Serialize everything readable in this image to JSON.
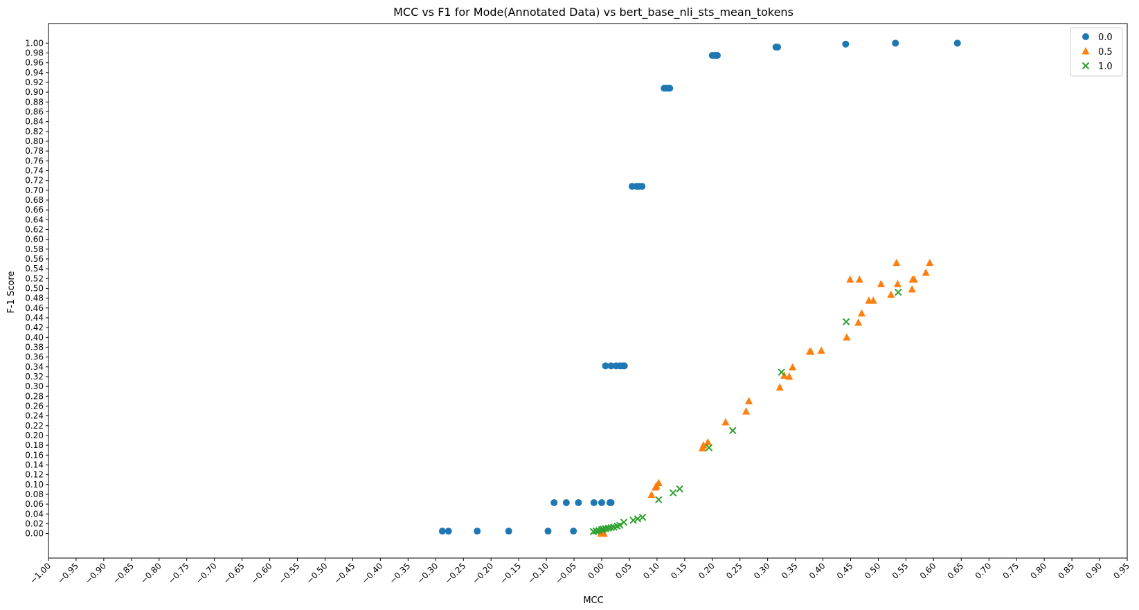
{
  "chart_data": {
    "type": "scatter",
    "title": "MCC vs F1 for Mode(Annotated Data) vs bert_base_nli_sts_mean_tokens",
    "xlabel": "MCC",
    "ylabel": "F-1 Score",
    "xlim": [
      -1.0,
      0.95
    ],
    "ylim": [
      -0.05,
      1.04
    ],
    "grid": false,
    "legend_position": "top-right",
    "x_ticks": [
      "−1.00",
      "−0.95",
      "−0.90",
      "−0.85",
      "−0.80",
      "−0.75",
      "−0.70",
      "−0.65",
      "−0.60",
      "−0.55",
      "−0.50",
      "−0.45",
      "−0.40",
      "−0.35",
      "−0.30",
      "−0.25",
      "−0.20",
      "−0.15",
      "−0.10",
      "−0.05",
      "0.00",
      "0.05",
      "0.10",
      "0.15",
      "0.20",
      "0.25",
      "0.30",
      "0.35",
      "0.40",
      "0.45",
      "0.50",
      "0.55",
      "0.60",
      "0.65",
      "0.70",
      "0.75",
      "0.80",
      "0.85",
      "0.90",
      "0.95"
    ],
    "y_ticks": [
      "0.00",
      "0.02",
      "0.04",
      "0.06",
      "0.08",
      "0.10",
      "0.12",
      "0.14",
      "0.16",
      "0.18",
      "0.20",
      "0.22",
      "0.24",
      "0.26",
      "0.28",
      "0.30",
      "0.32",
      "0.34",
      "0.36",
      "0.38",
      "0.40",
      "0.42",
      "0.44",
      "0.46",
      "0.48",
      "0.50",
      "0.52",
      "0.54",
      "0.56",
      "0.58",
      "0.60",
      "0.62",
      "0.64",
      "0.66",
      "0.68",
      "0.70",
      "0.72",
      "0.74",
      "0.76",
      "0.78",
      "0.80",
      "0.82",
      "0.84",
      "0.86",
      "0.88",
      "0.90",
      "0.92",
      "0.94",
      "0.96",
      "0.98",
      "1.00"
    ],
    "series": [
      {
        "name": "0.0",
        "marker": "circle",
        "color": "#1f77b4",
        "points": [
          [
            -0.288,
            0.005
          ],
          [
            -0.277,
            0.005
          ],
          [
            -0.225,
            0.005
          ],
          [
            -0.168,
            0.005
          ],
          [
            -0.097,
            0.005
          ],
          [
            -0.051,
            0.005
          ],
          [
            -0.086,
            0.063
          ],
          [
            -0.064,
            0.063
          ],
          [
            -0.042,
            0.063
          ],
          [
            -0.014,
            0.063
          ],
          [
            0.0,
            0.063
          ],
          [
            0.015,
            0.063
          ],
          [
            0.017,
            0.063
          ],
          [
            0.007,
            0.342
          ],
          [
            0.017,
            0.342
          ],
          [
            0.026,
            0.342
          ],
          [
            0.033,
            0.342
          ],
          [
            0.038,
            0.342
          ],
          [
            0.041,
            0.342
          ],
          [
            0.055,
            0.708
          ],
          [
            0.063,
            0.708
          ],
          [
            0.067,
            0.708
          ],
          [
            0.073,
            0.708
          ],
          [
            0.113,
            0.908
          ],
          [
            0.118,
            0.908
          ],
          [
            0.123,
            0.908
          ],
          [
            0.2,
            0.975
          ],
          [
            0.205,
            0.975
          ],
          [
            0.209,
            0.975
          ],
          [
            0.315,
            0.992
          ],
          [
            0.318,
            0.992
          ],
          [
            0.441,
            0.998
          ],
          [
            0.531,
            1.0
          ],
          [
            0.643,
            1.0
          ]
        ]
      },
      {
        "name": "0.5",
        "marker": "triangle",
        "color": "#ff7f0e",
        "points": [
          [
            -0.001,
            0.0
          ],
          [
            0.002,
            0.0
          ],
          [
            0.004,
            0.0
          ],
          [
            0.09,
            0.079
          ],
          [
            0.097,
            0.094
          ],
          [
            0.099,
            0.097
          ],
          [
            0.103,
            0.103
          ],
          [
            0.182,
            0.174
          ],
          [
            0.184,
            0.18
          ],
          [
            0.192,
            0.186
          ],
          [
            0.224,
            0.227
          ],
          [
            0.261,
            0.249
          ],
          [
            0.266,
            0.27
          ],
          [
            0.322,
            0.298
          ],
          [
            0.33,
            0.322
          ],
          [
            0.339,
            0.32
          ],
          [
            0.345,
            0.339
          ],
          [
            0.376,
            0.371
          ],
          [
            0.378,
            0.371
          ],
          [
            0.397,
            0.373
          ],
          [
            0.443,
            0.4
          ],
          [
            0.449,
            0.518
          ],
          [
            0.464,
            0.43
          ],
          [
            0.466,
            0.518
          ],
          [
            0.47,
            0.449
          ],
          [
            0.483,
            0.475
          ],
          [
            0.491,
            0.475
          ],
          [
            0.505,
            0.509
          ],
          [
            0.523,
            0.487
          ],
          [
            0.533,
            0.552
          ],
          [
            0.535,
            0.509
          ],
          [
            0.561,
            0.498
          ],
          [
            0.562,
            0.518
          ],
          [
            0.565,
            0.518
          ],
          [
            0.586,
            0.532
          ],
          [
            0.593,
            0.552
          ]
        ]
      },
      {
        "name": "1.0",
        "marker": "x",
        "color": "#2ca02c",
        "points": [
          [
            -0.015,
            0.004
          ],
          [
            -0.01,
            0.005
          ],
          [
            -0.005,
            0.006
          ],
          [
            0.0,
            0.008
          ],
          [
            0.003,
            0.009
          ],
          [
            0.007,
            0.01
          ],
          [
            0.012,
            0.011
          ],
          [
            0.017,
            0.012
          ],
          [
            0.022,
            0.013
          ],
          [
            0.028,
            0.015
          ],
          [
            0.033,
            0.017
          ],
          [
            0.04,
            0.023
          ],
          [
            0.057,
            0.027
          ],
          [
            0.065,
            0.03
          ],
          [
            0.074,
            0.033
          ],
          [
            0.103,
            0.069
          ],
          [
            0.129,
            0.083
          ],
          [
            0.141,
            0.091
          ],
          [
            0.194,
            0.175
          ],
          [
            0.237,
            0.21
          ],
          [
            0.325,
            0.329
          ],
          [
            0.442,
            0.432
          ],
          [
            0.536,
            0.492
          ]
        ]
      }
    ]
  }
}
